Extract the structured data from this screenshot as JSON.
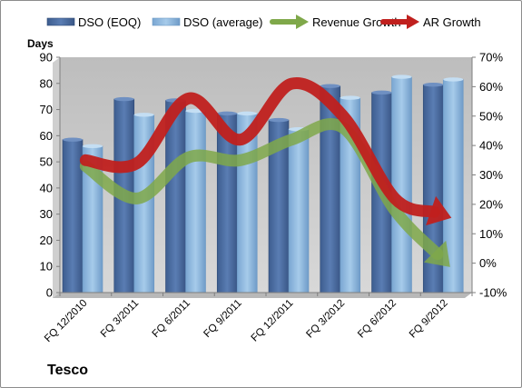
{
  "chart_data": {
    "type": "bar",
    "company": "Tesco",
    "y_axis_title": "Days",
    "categories": [
      "FQ 12/2010",
      "FQ 3/2011",
      "FQ 6/2011",
      "FQ 9/2011",
      "FQ 12/2011",
      "FQ 3/2012",
      "FQ 6/2012",
      "FQ 9/2012"
    ],
    "ylim": [
      0,
      90
    ],
    "y_ticks": [
      0,
      10,
      20,
      30,
      40,
      50,
      60,
      70,
      80,
      90
    ],
    "y2lim": [
      -10,
      70
    ],
    "y2_ticks": [
      -10,
      0,
      10,
      20,
      30,
      40,
      50,
      60,
      70
    ],
    "y2_unit": "%",
    "grid": false,
    "legend_position": "top",
    "series": [
      {
        "name": "DSO (EOQ)",
        "kind": "bar",
        "axis": "left",
        "color": "#4f6fa0",
        "values": [
          58.5,
          74,
          73.5,
          68.5,
          66,
          79,
          76.5,
          79.5
        ]
      },
      {
        "name": "DSO (average)",
        "kind": "bar",
        "axis": "left",
        "color": "#8ab4dc",
        "values": [
          56,
          68,
          69.5,
          68.5,
          62.5,
          74.5,
          82.5,
          81.5
        ]
      },
      {
        "name": "Revenue Growth",
        "kind": "arrow",
        "axis": "right",
        "color": "#7fa84a",
        "values": [
          33,
          22,
          36,
          35,
          42,
          46,
          18,
          0
        ]
      },
      {
        "name": "AR Growth",
        "kind": "arrow",
        "axis": "right",
        "color": "#c0201e",
        "values": [
          35,
          34,
          56,
          42,
          61,
          50,
          22,
          16
        ]
      }
    ]
  }
}
